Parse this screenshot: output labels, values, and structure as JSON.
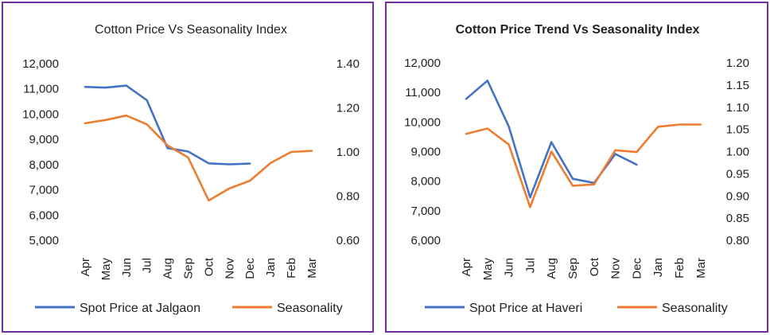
{
  "chart_data": [
    {
      "type": "line",
      "title": "Cotton Price Vs Seasonality Index",
      "categories": [
        "Apr",
        "May",
        "Jun",
        "Jul",
        "Aug",
        "Sep",
        "Oct",
        "Nov",
        "Dec",
        "Jan",
        "Feb",
        "Mar"
      ],
      "y_ticks": [
        "12,000",
        "11,000",
        "10,000",
        "9,000",
        "8,000",
        "7,000",
        "6,000",
        "5,000"
      ],
      "y2_ticks": [
        "1.40",
        "1.20",
        "1.00",
        "0.80",
        "0.60"
      ],
      "ylim": [
        5000,
        12000
      ],
      "y2lim": [
        0.6,
        1.4
      ],
      "grid": false,
      "legend_position": "bottom",
      "series": [
        {
          "name": "Spot Price at Jalgaon",
          "axis": "left",
          "color": "#4472c4",
          "values": [
            11080,
            11050,
            11130,
            10550,
            8650,
            8520,
            8050,
            8010,
            8040,
            null,
            null,
            null
          ]
        },
        {
          "name": "Seasonality",
          "axis": "right",
          "color": "#ed7d31",
          "values": [
            1.13,
            1.145,
            1.165,
            1.125,
            1.03,
            0.975,
            0.78,
            0.835,
            0.87,
            0.95,
            1.0,
            1.005
          ]
        }
      ]
    },
    {
      "type": "line",
      "title": "Cotton Price Trend Vs Seasonality Index",
      "categories": [
        "Apr",
        "May",
        "Jun",
        "Jul",
        "Aug",
        "Sep",
        "Oct",
        "Nov",
        "Dec",
        "Jan",
        "Feb",
        "Mar"
      ],
      "y_ticks": [
        "12,000",
        "11,000",
        "10,000",
        "9,000",
        "8,000",
        "7,000",
        "6,000"
      ],
      "y2_ticks": [
        "1.20",
        "1.15",
        "1.10",
        "1.05",
        "1.00",
        "0.95",
        "0.90",
        "0.85",
        "0.80"
      ],
      "ylim": [
        6000,
        12000
      ],
      "y2lim": [
        0.8,
        1.2
      ],
      "grid": false,
      "legend_position": "bottom",
      "series": [
        {
          "name": "Spot Price at Haveri",
          "axis": "left",
          "color": "#4472c4",
          "values": [
            10780,
            11400,
            9850,
            7450,
            9320,
            8080,
            7940,
            8920,
            8560,
            null,
            null,
            null
          ]
        },
        {
          "name": "Seasonality",
          "axis": "right",
          "color": "#ed7d31",
          "values": [
            1.04,
            1.052,
            1.016,
            0.875,
            1.0,
            0.923,
            0.926,
            1.003,
            0.999,
            1.056,
            1.061,
            1.061
          ]
        }
      ]
    }
  ]
}
